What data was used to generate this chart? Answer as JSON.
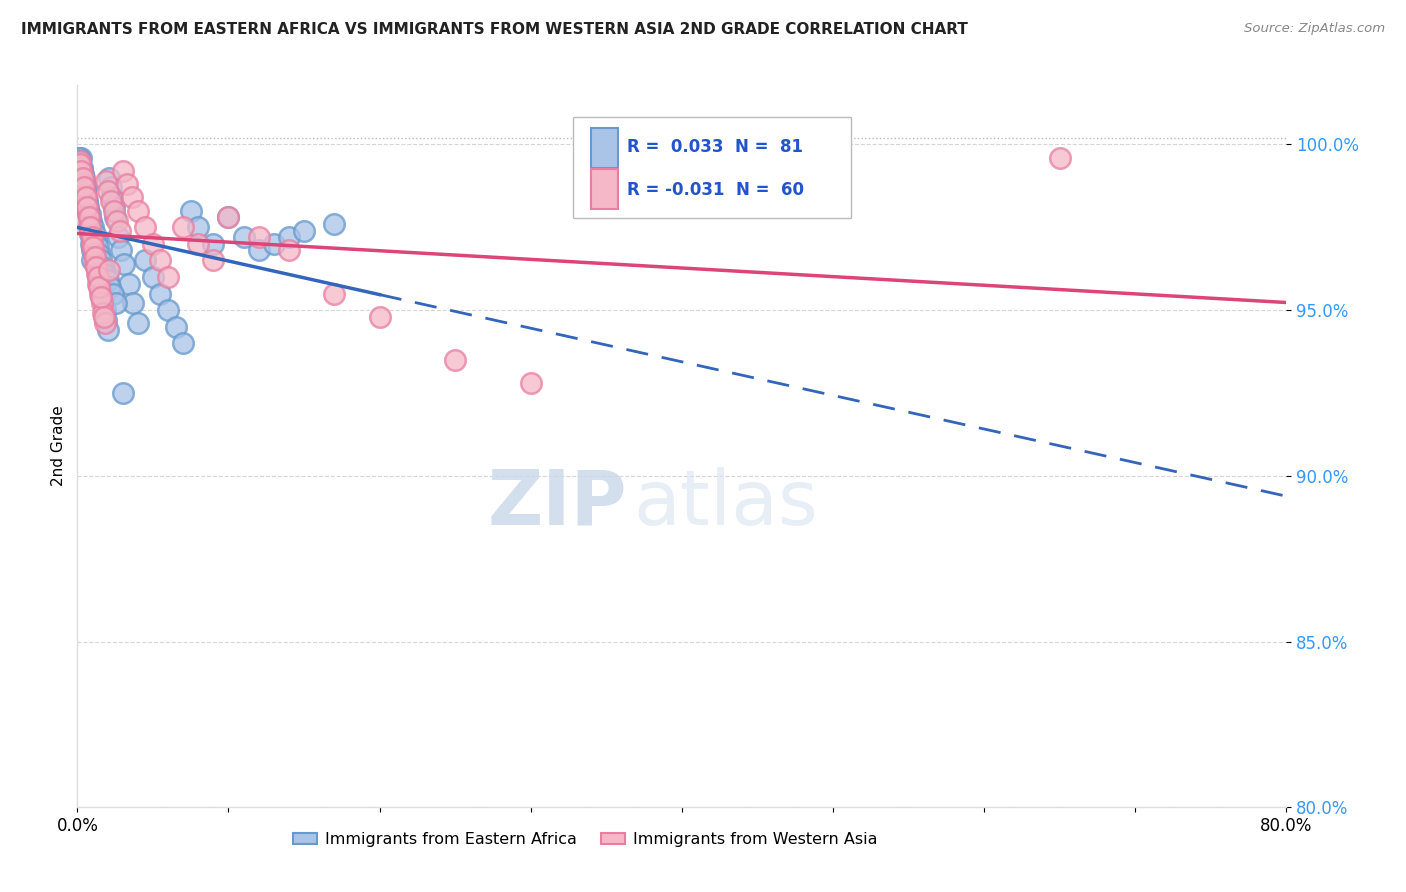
{
  "title": "IMMIGRANTS FROM EASTERN AFRICA VS IMMIGRANTS FROM WESTERN ASIA 2ND GRADE CORRELATION CHART",
  "source": "Source: ZipAtlas.com",
  "ylabel": "2nd Grade",
  "xlim": [
    0.0,
    80.0
  ],
  "ylim": [
    80.0,
    101.8
  ],
  "yticks": [
    80.0,
    85.0,
    90.0,
    95.0,
    100.0
  ],
  "ytick_labels": [
    "80.0%",
    "85.0%",
    "90.0%",
    "95.0%",
    "100.0%"
  ],
  "xticks": [
    0.0,
    10.0,
    20.0,
    30.0,
    40.0,
    50.0,
    60.0,
    70.0,
    80.0
  ],
  "series1_color_face": "#aac4e8",
  "series1_color_edge": "#6699cc",
  "series2_color_face": "#f4b8c8",
  "series2_color_edge": "#e87ea0",
  "series1_label": "Immigrants from Eastern Africa",
  "series2_label": "Immigrants from Western Asia",
  "R1": 0.033,
  "N1": 81,
  "R2": -0.031,
  "N2": 60,
  "watermark_zip": "ZIP",
  "watermark_atlas": "atlas",
  "blue_line_color": "#3366bb",
  "pink_line_color": "#dd4477",
  "legend_box_color": "#aac4e8",
  "legend_box_color2": "#f4b8c8",
  "scatter1_x": [
    0.1,
    0.15,
    0.2,
    0.25,
    0.3,
    0.35,
    0.4,
    0.45,
    0.5,
    0.55,
    0.6,
    0.65,
    0.7,
    0.75,
    0.8,
    0.85,
    0.9,
    0.95,
    1.0,
    1.1,
    1.2,
    1.3,
    1.4,
    1.5,
    1.6,
    1.7,
    1.8,
    1.9,
    2.0,
    2.1,
    2.2,
    2.3,
    2.4,
    2.5,
    2.7,
    2.9,
    3.1,
    3.4,
    3.7,
    4.0,
    4.5,
    5.0,
    5.5,
    6.0,
    6.5,
    7.0,
    7.5,
    8.0,
    9.0,
    10.0,
    11.0,
    12.0,
    13.0,
    14.0,
    15.0,
    17.0,
    0.12,
    0.18,
    0.22,
    0.28,
    0.32,
    0.38,
    0.42,
    0.52,
    0.62,
    0.72,
    0.82,
    0.92,
    1.05,
    1.15,
    1.25,
    1.35,
    1.45,
    1.55,
    1.65,
    1.75,
    2.05,
    2.15,
    2.35,
    2.55,
    3.0
  ],
  "scatter1_y": [
    99.2,
    99.5,
    99.4,
    99.6,
    99.3,
    99.1,
    98.8,
    99.0,
    98.6,
    98.7,
    98.4,
    98.2,
    98.0,
    97.8,
    97.5,
    97.3,
    97.0,
    96.8,
    96.5,
    97.2,
    96.8,
    96.5,
    96.2,
    95.9,
    95.6,
    95.3,
    95.0,
    94.7,
    94.4,
    99.0,
    98.7,
    98.4,
    98.1,
    97.8,
    97.2,
    96.8,
    96.4,
    95.8,
    95.2,
    94.6,
    96.5,
    96.0,
    95.5,
    95.0,
    94.5,
    94.0,
    98.0,
    97.5,
    97.0,
    97.8,
    97.2,
    96.8,
    97.0,
    97.2,
    97.4,
    97.6,
    99.6,
    99.5,
    99.3,
    99.1,
    99.0,
    98.9,
    98.7,
    98.5,
    98.3,
    98.1,
    97.9,
    97.7,
    97.5,
    97.3,
    97.1,
    96.9,
    96.7,
    96.5,
    96.3,
    96.1,
    95.9,
    95.7,
    95.5,
    95.2,
    92.5
  ],
  "scatter2_x": [
    0.1,
    0.2,
    0.3,
    0.4,
    0.5,
    0.6,
    0.7,
    0.8,
    0.9,
    1.0,
    1.1,
    1.2,
    1.3,
    1.4,
    1.5,
    1.6,
    1.7,
    1.8,
    1.9,
    2.0,
    2.2,
    2.4,
    2.6,
    2.8,
    3.0,
    3.3,
    3.6,
    4.0,
    4.5,
    5.0,
    5.5,
    6.0,
    7.0,
    8.0,
    9.0,
    10.0,
    12.0,
    14.0,
    17.0,
    20.0,
    25.0,
    30.0,
    0.15,
    0.25,
    0.35,
    0.45,
    0.55,
    0.65,
    0.75,
    0.85,
    0.95,
    1.05,
    1.15,
    1.25,
    1.35,
    1.45,
    1.55,
    1.75,
    2.1,
    65.0
  ],
  "scatter2_y": [
    99.3,
    99.5,
    99.1,
    98.8,
    98.5,
    98.2,
    97.9,
    97.6,
    97.3,
    97.0,
    96.7,
    96.4,
    96.1,
    95.8,
    95.5,
    95.2,
    94.9,
    94.6,
    98.9,
    98.6,
    98.3,
    98.0,
    97.7,
    97.4,
    99.2,
    98.8,
    98.4,
    98.0,
    97.5,
    97.0,
    96.5,
    96.0,
    97.5,
    97.0,
    96.5,
    97.8,
    97.2,
    96.8,
    95.5,
    94.8,
    93.5,
    92.8,
    99.4,
    99.2,
    99.0,
    98.7,
    98.4,
    98.1,
    97.8,
    97.5,
    97.2,
    96.9,
    96.6,
    96.3,
    96.0,
    95.7,
    95.4,
    94.8,
    96.2,
    99.6
  ],
  "blue_solid_xmax": 20.0,
  "blue_dash_xmin": 20.0
}
